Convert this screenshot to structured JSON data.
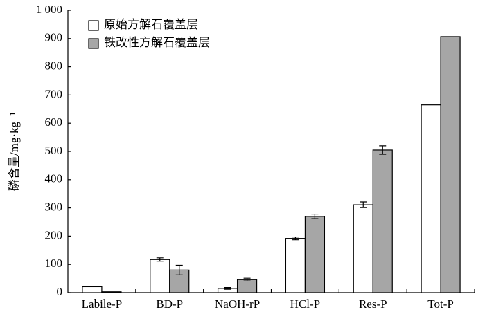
{
  "chart_data": {
    "type": "bar",
    "y_label": "磷含量/mg·kg⁻¹",
    "categories": [
      "Labile-P",
      "BD-P",
      "NaOH-rP",
      "HCl-P",
      "Res-P",
      "Tot-P"
    ],
    "series": [
      {
        "name": "原始方解石覆盖层",
        "color": "#ffffff",
        "values": [
          21,
          117,
          15,
          192,
          311,
          665
        ],
        "errors": [
          null,
          6,
          3,
          5,
          10,
          null
        ]
      },
      {
        "name": "铁改性方解石覆盖层",
        "color": "#a6a6a6",
        "values": [
          3,
          80,
          46,
          270,
          505,
          907
        ],
        "errors": [
          null,
          17,
          5,
          8,
          15,
          null
        ]
      }
    ],
    "ylim": [
      0,
      1000
    ],
    "yticks": [
      0,
      100,
      200,
      300,
      400,
      500,
      600,
      700,
      800,
      900,
      {
        "value": 1000,
        "label": "1 000"
      }
    ],
    "grid": false,
    "legend": "top-left"
  }
}
